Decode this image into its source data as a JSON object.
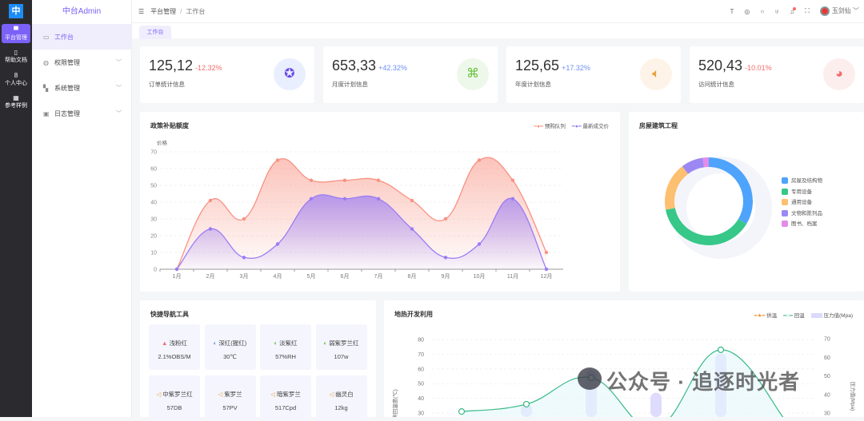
{
  "rail": {
    "logo": "中",
    "items": [
      {
        "label": "平台管理",
        "icon": "monitor-icon"
      },
      {
        "label": "帮助文档",
        "icon": "doc-icon"
      },
      {
        "label": "个人中心",
        "icon": "user-icon"
      },
      {
        "label": "参考样例",
        "icon": "grid-icon"
      }
    ]
  },
  "sidebar": {
    "brand": "中台Admin",
    "items": [
      {
        "label": "工作台",
        "icon": "dashboard-icon"
      },
      {
        "label": "权限管理",
        "icon": "shield-icon"
      },
      {
        "label": "系统管理",
        "icon": "windows-icon"
      },
      {
        "label": "日志管理",
        "icon": "log-icon"
      }
    ]
  },
  "header": {
    "breadcrumb": [
      "平台管理",
      "工作台"
    ],
    "user": "玉剑仙"
  },
  "tabs": [
    "工作台"
  ],
  "stats": [
    {
      "value": "125,12",
      "change": "-12.32%",
      "label": "订单统计信息",
      "color": "#f56c6c",
      "icon": "badge-icon",
      "icon_color": "#6a4de8",
      "bg": "#e9efff"
    },
    {
      "value": "653,33",
      "change": "+42.32%",
      "label": "月度计划信息",
      "color": "#6f8ff5",
      "icon": "map-icon",
      "icon_color": "#67c23a",
      "bg": "#eef8ea"
    },
    {
      "value": "125,65",
      "change": "+17.32%",
      "label": "年度计划信息",
      "color": "#6f8ff5",
      "icon": "speaker-icon",
      "icon_color": "#e6a23c",
      "bg": "#fdf3e8"
    },
    {
      "value": "520,43",
      "change": "-10.01%",
      "label": "访问统计信息",
      "color": "#f56c6c",
      "icon": "github-icon",
      "icon_color": "#f56c6c",
      "bg": "#fdeeee"
    }
  ],
  "chart_data": [
    {
      "type": "area",
      "title": "政策补贴额度",
      "ylabel": "价格",
      "ylim": [
        0,
        70
      ],
      "yticks": [
        0,
        10,
        20,
        30,
        40,
        50,
        60,
        70
      ],
      "categories": [
        "1月",
        "2月",
        "3月",
        "4月",
        "5月",
        "6月",
        "7月",
        "8月",
        "9月",
        "10月",
        "11月",
        "12月"
      ],
      "legend": "top-right",
      "grid": true,
      "series": [
        {
          "name": "预购队列",
          "color": "#f89282",
          "values": [
            0,
            41,
            30,
            65,
            53,
            53,
            53,
            41,
            30,
            65,
            53,
            10
          ]
        },
        {
          "name": "最新成交价",
          "color": "#9a7cf5",
          "values": [
            0,
            24,
            7,
            15,
            42,
            42,
            42,
            24,
            7,
            15,
            42,
            0
          ]
        }
      ]
    },
    {
      "type": "pie",
      "title": "房屋建筑工程",
      "legend": "right",
      "slices": [
        {
          "name": "房屋及结构物",
          "value": 33.6,
          "color": "#4ea3fc"
        },
        {
          "name": "专用设备",
          "value": 38.3,
          "color": "#37c788"
        },
        {
          "name": "通用设备",
          "value": 17.8,
          "color": "#fdbf70"
        },
        {
          "name": "文物和陈列品",
          "value": 8.1,
          "color": "#9c88f3"
        },
        {
          "name": "图书、档案",
          "value": 2.2,
          "color": "#e38de8"
        }
      ]
    },
    {
      "type": "line",
      "title": "地热开发利用",
      "ylabel": "供回温度(℃)",
      "y2label": "压力值(Mpa)",
      "yticks": [
        30,
        40,
        50,
        60,
        70,
        80
      ],
      "y2ticks": [
        30,
        40,
        50,
        60,
        70
      ],
      "legend": "top-right",
      "series": [
        {
          "name": "供温",
          "color": "#f5891e",
          "values": []
        },
        {
          "name": "回温",
          "color": "#38b985",
          "values": [
            31,
            36,
            54,
            20,
            73,
            25
          ]
        },
        {
          "name": "压力值(Mpa)",
          "color": "#d6d3fb",
          "axis": "right",
          "values": [
            null,
            35,
            53,
            41,
            62,
            null
          ]
        }
      ]
    }
  ],
  "quicknav": {
    "title": "快捷导航工具",
    "items": [
      {
        "label": "浅粉红",
        "value": "2.1%OBS/M",
        "icon": "flask-icon",
        "color": "#f56c6c"
      },
      {
        "label": "深红(猩红)",
        "value": "30℃",
        "icon": "thermo-icon",
        "color": "#6f8ff5"
      },
      {
        "label": "淡紫红",
        "value": "57%RH",
        "icon": "drop-icon",
        "color": "#67c23a"
      },
      {
        "label": "弱紫罗兰红",
        "value": "107w",
        "icon": "drop-icon",
        "color": "#67c23a"
      },
      {
        "label": "中紫罗兰红",
        "value": "57DB",
        "icon": "speaker-icon",
        "color": "#e6a23c"
      },
      {
        "label": "紫罗兰",
        "value": "57PV",
        "icon": "speaker-icon",
        "color": "#e6a23c"
      },
      {
        "label": "暗紫罗兰",
        "value": "517Cpd",
        "icon": "speaker-icon",
        "color": "#e6a23c"
      },
      {
        "label": "幽灵白",
        "value": "12kg",
        "icon": "speaker-icon",
        "color": "#e6a23c"
      }
    ]
  },
  "watermark": "公众号 · 追逐时光者"
}
